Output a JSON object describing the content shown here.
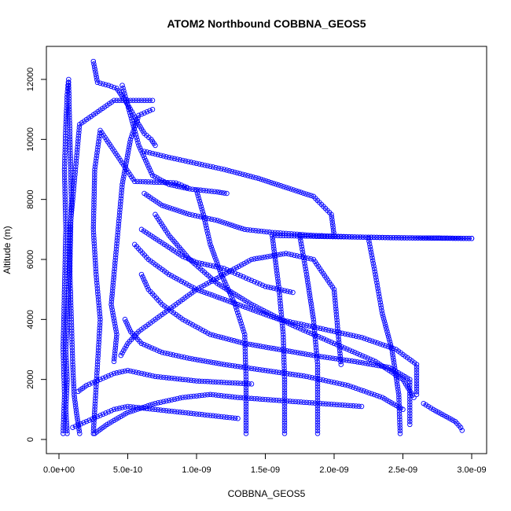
{
  "chart_data": {
    "type": "scatter",
    "title": "ATOM2 Northbound COBBNA_GEOS5",
    "xlabel": "COBBNA_GEOS5",
    "ylabel": "Altitude (m)",
    "xlim": [
      0,
      3e-09
    ],
    "ylim": [
      0,
      12600
    ],
    "x_ticks": [
      0,
      5e-10,
      1e-09,
      1.5e-09,
      2e-09,
      2.5e-09,
      3e-09
    ],
    "x_tick_labels": [
      "0.0e+00",
      "5.0e-10",
      "1.0e-09",
      "1.5e-09",
      "2.0e-09",
      "2.5e-09",
      "3.0e-09"
    ],
    "y_ticks": [
      0,
      2000,
      4000,
      6000,
      8000,
      10000,
      12000
    ],
    "y_tick_labels": [
      "0",
      "2000",
      "4000",
      "6000",
      "8000",
      "10000",
      "12000"
    ],
    "grid": false,
    "marker": "open-circle",
    "color": "#0000ff",
    "series": [
      {
        "x": [
          6e-11,
          5e-11,
          6e-11,
          5e-11,
          6e-11,
          7e-11,
          8e-11,
          9e-11,
          8e-11,
          7e-11
        ],
        "y": [
          200,
          1000,
          2000,
          3000,
          4000,
          5000,
          6000,
          8000,
          10000,
          11900
        ]
      },
      {
        "x": [
          3e-11,
          4e-11,
          3e-11,
          4e-11,
          5e-11,
          4e-11,
          5e-11,
          6e-11,
          7e-11
        ],
        "y": [
          200,
          1500,
          3000,
          5000,
          7000,
          9000,
          10500,
          11500,
          12000
        ]
      },
      {
        "x": [
          1.5e-10,
          1.3e-10,
          1.1e-10,
          1e-10,
          9e-11,
          8e-11,
          8e-11,
          1.2e-10,
          1.5e-10,
          4e-10,
          6.8e-10
        ],
        "y": [
          200,
          800,
          1500,
          2500,
          4000,
          5500,
          7000,
          9000,
          10500,
          11300,
          11300
        ]
      },
      {
        "x": [
          2.5e-10,
          2.6e-10,
          2.8e-10,
          3e-10,
          2.7e-10,
          2.5e-10,
          2.6e-10,
          3e-10,
          5.5e-10,
          8.5e-10,
          9.3e-10
        ],
        "y": [
          200,
          1000,
          2500,
          4000,
          5500,
          7000,
          9000,
          10300,
          8600,
          8550,
          8400
        ]
      },
      {
        "x": [
          2.5e-10,
          2.8e-10,
          3.6e-10,
          4.2e-10,
          4.5e-10,
          4.8e-10,
          5.2e-10,
          5.8e-10,
          6.2e-10,
          6.7e-10,
          7e-10
        ],
        "y": [
          12600,
          11900,
          11800,
          11700,
          11500,
          11300,
          11000,
          10500,
          10200,
          10000,
          9800
        ]
      },
      {
        "x": [
          4e-10,
          4.2e-10,
          3.8e-10,
          4e-10,
          4.3e-10,
          4.6e-10,
          5.2e-10,
          5.8e-10,
          6.8e-10
        ],
        "y": [
          2600,
          3500,
          4500,
          5500,
          7000,
          8500,
          10000,
          10800,
          11000
        ]
      },
      {
        "x": [
          4.6e-10,
          5.2e-10,
          5.8e-10,
          6.8e-10,
          8e-10,
          9.5e-10,
          1.05e-09,
          1.15e-09,
          1.22e-09
        ],
        "y": [
          11800,
          10800,
          9800,
          8800,
          8500,
          8350,
          8300,
          8250,
          8200
        ]
      },
      {
        "x": [
          6.2e-10,
          7.5e-10,
          9.5e-10,
          1.15e-09,
          1.35e-09,
          1.55e-09,
          1.85e-09,
          2.15e-09,
          2.45e-09,
          2.75e-09,
          3e-09
        ],
        "y": [
          8200,
          7800,
          7500,
          7300,
          7000,
          6900,
          6800,
          6750,
          6720,
          6710,
          6700
        ]
      },
      {
        "x": [
          1.55e-09,
          1.75e-09,
          1.95e-09,
          2.25e-09,
          2.55e-09,
          2.8e-09,
          3e-09
        ],
        "y": [
          6800,
          6780,
          6760,
          6740,
          6720,
          6710,
          6700
        ]
      },
      {
        "x": [
          6.2e-10,
          8e-10,
          1e-09,
          1.2e-09,
          1.45e-09,
          1.65e-09,
          1.85e-09,
          1.98e-09,
          2e-09
        ],
        "y": [
          9600,
          9400,
          9200,
          9000,
          8700,
          8400,
          8100,
          7500,
          6800
        ]
      },
      {
        "x": [
          4.5e-10,
          5e-10,
          5.8e-10,
          7e-10,
          8.5e-10,
          1e-09,
          1.2e-09,
          1.4e-09,
          1.65e-09,
          1.85e-09,
          2e-09,
          2.05e-09
        ],
        "y": [
          2800,
          3200,
          3600,
          4000,
          4500,
          5000,
          5500,
          6000,
          6200,
          6000,
          5000,
          2500
        ]
      },
      {
        "x": [
          6e-10,
          6.5e-10,
          7.5e-10,
          9e-10,
          1.1e-09,
          1.35e-09,
          1.6e-09,
          1.85e-09,
          2.15e-09,
          2.4e-09,
          2.55e-09,
          2.55e-09
        ],
        "y": [
          5500,
          5000,
          4500,
          4000,
          3500,
          3200,
          3000,
          2800,
          2600,
          2400,
          2000,
          500
        ]
      },
      {
        "x": [
          4.8e-10,
          5.2e-10,
          6e-10,
          7.5e-10,
          9.5e-10,
          1.2e-09,
          1.5e-09,
          1.8e-09,
          2.1e-09,
          2.35e-09,
          2.5e-09
        ],
        "y": [
          4000,
          3600,
          3200,
          2900,
          2700,
          2500,
          2300,
          2100,
          1800,
          1400,
          1000
        ]
      },
      {
        "x": [
          5.5e-10,
          6.5e-10,
          8e-10,
          1e-09,
          1.3e-09,
          1.6e-09,
          1.9e-09,
          2.2e-09,
          2.45e-09,
          2.6e-09,
          2.6e-09
        ],
        "y": [
          6500,
          6000,
          5500,
          5000,
          4500,
          4000,
          3700,
          3400,
          3000,
          2500,
          1500
        ]
      },
      {
        "x": [
          7e-10,
          8e-10,
          9.5e-10,
          1.15e-09,
          1.4e-09,
          1.7e-09,
          2e-09,
          2.3e-09,
          2.5e-09,
          2.58e-09
        ],
        "y": [
          7500,
          6800,
          6000,
          5200,
          4500,
          3800,
          3200,
          2600,
          2000,
          1400
        ]
      },
      {
        "x": [
          1.4e-10,
          2e-10,
          3e-10,
          4e-10,
          5e-10,
          6e-10,
          7e-10,
          8e-10,
          9e-10,
          1e-09,
          1.2e-09,
          1.4e-09
        ],
        "y": [
          1600,
          1800,
          2000,
          2200,
          2300,
          2200,
          2100,
          2050,
          2000,
          1950,
          1900,
          1850
        ]
      },
      {
        "x": [
          2.6e-10,
          3.5e-10,
          5e-10,
          7e-10,
          9e-10,
          1.1e-09,
          1.3e-09,
          1.6e-09,
          1.9e-09,
          2.2e-09
        ],
        "y": [
          200,
          500,
          900,
          1200,
          1400,
          1500,
          1400,
          1300,
          1200,
          1100
        ]
      },
      {
        "x": [
          1e-09,
          1.05e-09,
          1.1e-09,
          1.18e-09,
          1.28e-09,
          1.35e-09,
          1.36e-09,
          1.36e-09
        ],
        "y": [
          8300,
          7500,
          6500,
          5500,
          4500,
          3500,
          2000,
          200
        ]
      },
      {
        "x": [
          1.55e-09,
          1.6e-09,
          1.63e-09,
          1.64e-09,
          1.64e-09
        ],
        "y": [
          6800,
          5000,
          3500,
          2000,
          200
        ]
      },
      {
        "x": [
          1.75e-09,
          1.8e-09,
          1.85e-09,
          1.88e-09,
          1.88e-09
        ],
        "y": [
          6800,
          5500,
          4000,
          2500,
          200
        ]
      },
      {
        "x": [
          2.25e-09,
          2.3e-09,
          2.35e-09,
          2.42e-09,
          2.47e-09,
          2.48e-09
        ],
        "y": [
          6700,
          5500,
          4200,
          3000,
          1500,
          200
        ]
      },
      {
        "x": [
          2.65e-09,
          2.72e-09,
          2.8e-09,
          2.88e-09,
          2.92e-09,
          2.93e-09
        ],
        "y": [
          1200,
          1000,
          800,
          600,
          400,
          300
        ]
      },
      {
        "x": [
          1e-10,
          2e-10,
          3e-10,
          4e-10,
          5e-10,
          6e-10,
          7e-10,
          8e-10,
          9e-10,
          1e-09,
          1.1e-09,
          1.2e-09,
          1.3e-09
        ],
        "y": [
          400,
          600,
          800,
          1000,
          1100,
          1050,
          1000,
          950,
          900,
          850,
          800,
          750,
          700
        ]
      },
      {
        "x": [
          6e-10,
          7e-10,
          8e-10,
          9e-10,
          1e-09,
          1.1e-09,
          1.2e-09,
          1.3e-09,
          1.4e-09,
          1.5e-09,
          1.6e-09,
          1.7e-09
        ],
        "y": [
          7000,
          6700,
          6400,
          6100,
          5900,
          5800,
          5700,
          5500,
          5300,
          5100,
          5000,
          4900
        ]
      }
    ],
    "annotations": []
  }
}
